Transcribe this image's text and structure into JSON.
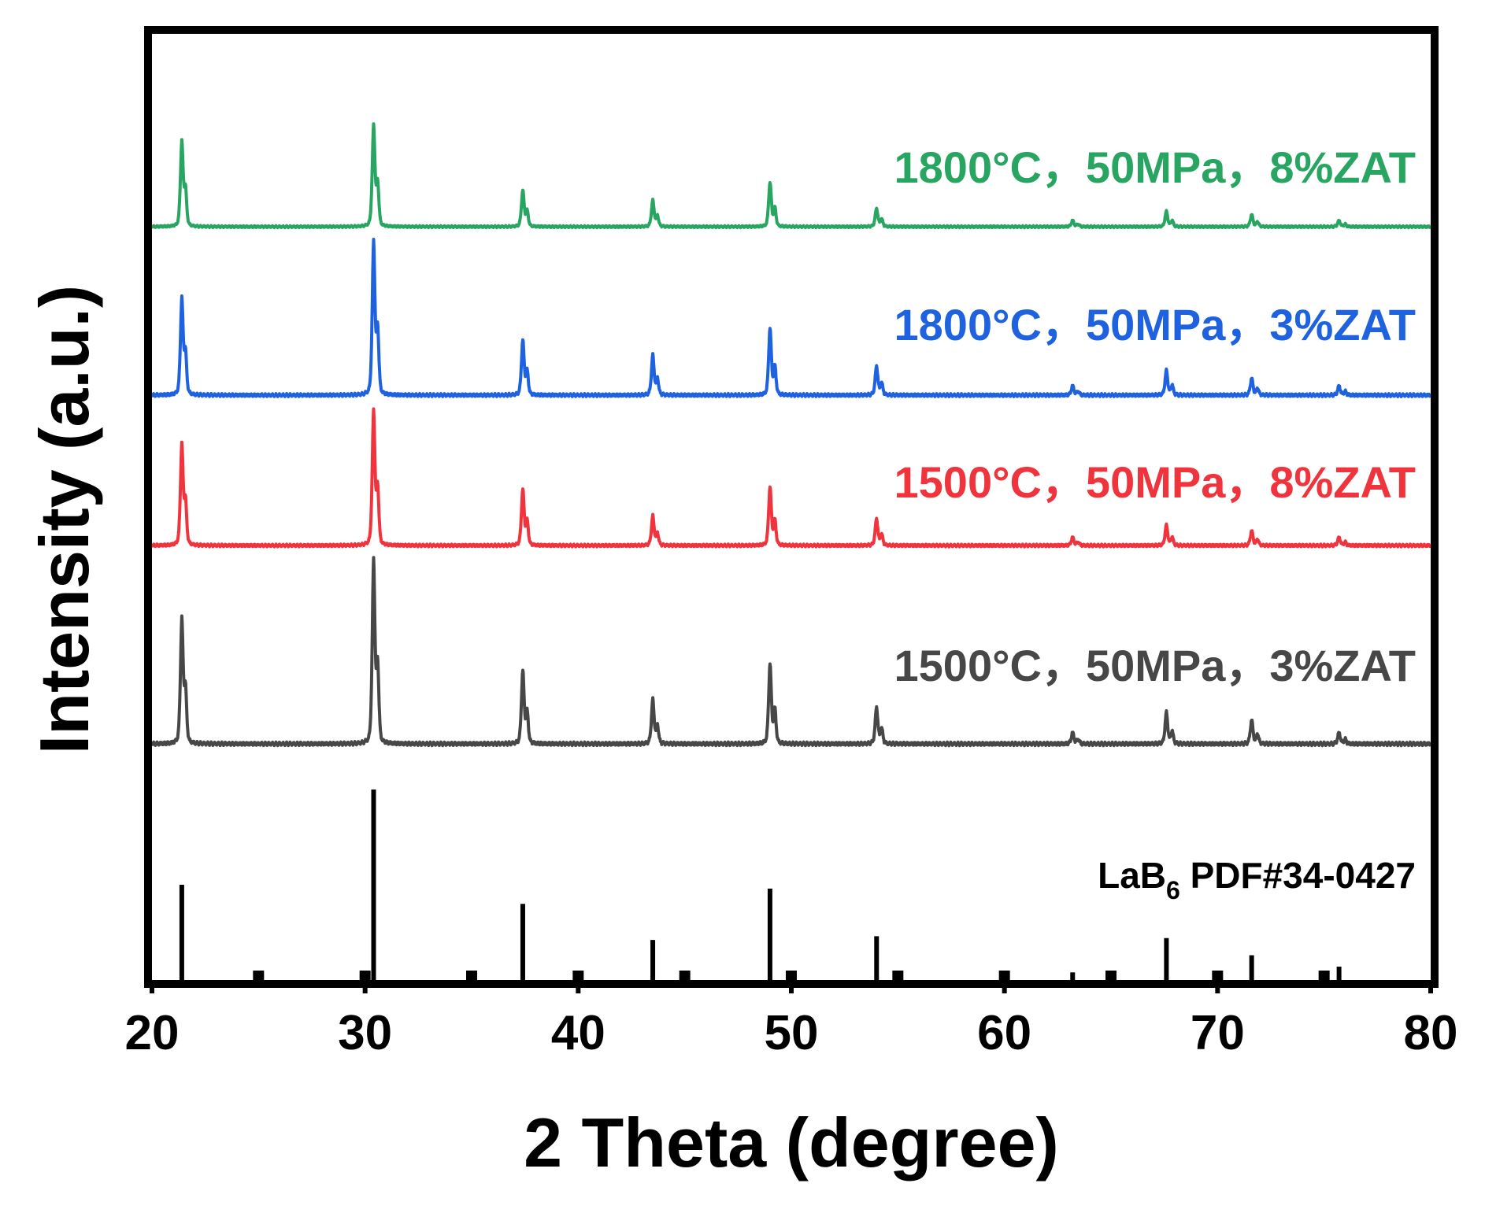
{
  "chart_data": {
    "type": "line",
    "title": "",
    "xlabel": "2 Theta (degree)",
    "ylabel": "Intensity (a.u.)",
    "xlim": [
      20,
      80
    ],
    "xticks": [
      20,
      30,
      40,
      50,
      60,
      70,
      80
    ],
    "xtick_labels": [
      "20",
      "30",
      "40",
      "50",
      "60",
      "70",
      "80"
    ],
    "yticks": "none",
    "grid": false,
    "stacked_offsets": true,
    "reference": {
      "label_main": "LaB",
      "label_sub": "6",
      "label_rest": " PDF#34-0427",
      "color": "#000000",
      "peaks": [
        {
          "x": 21.4,
          "rel": 50
        },
        {
          "x": 30.4,
          "rel": 100
        },
        {
          "x": 37.4,
          "rel": 40
        },
        {
          "x": 43.5,
          "rel": 21
        },
        {
          "x": 49.0,
          "rel": 48
        },
        {
          "x": 54.0,
          "rel": 23
        },
        {
          "x": 63.2,
          "rel": 4
        },
        {
          "x": 67.6,
          "rel": 22
        },
        {
          "x": 71.6,
          "rel": 13
        },
        {
          "x": 75.7,
          "rel": 7
        }
      ],
      "minor_marks": [
        25,
        30,
        35,
        40,
        45,
        50,
        55,
        60,
        65,
        70,
        75
      ]
    },
    "series": [
      {
        "name": "1500°C，50MPa，3%ZAT",
        "color": "#474747",
        "peaks": [
          {
            "x": 21.4,
            "rel": 68
          },
          {
            "x": 30.4,
            "rel": 100
          },
          {
            "x": 37.4,
            "rel": 40
          },
          {
            "x": 43.5,
            "rel": 24
          },
          {
            "x": 49.0,
            "rel": 44
          },
          {
            "x": 54.0,
            "rel": 20
          },
          {
            "x": 63.2,
            "rel": 6
          },
          {
            "x": 67.6,
            "rel": 17
          },
          {
            "x": 71.6,
            "rel": 13
          },
          {
            "x": 75.7,
            "rel": 6
          }
        ]
      },
      {
        "name": "1500°C，50MPa，8%ZAT",
        "color": "#f0343d",
        "peaks": [
          {
            "x": 21.4,
            "rel": 75
          },
          {
            "x": 30.4,
            "rel": 100
          },
          {
            "x": 37.4,
            "rel": 42
          },
          {
            "x": 43.5,
            "rel": 22
          },
          {
            "x": 49.0,
            "rel": 44
          },
          {
            "x": 54.0,
            "rel": 20
          },
          {
            "x": 63.2,
            "rel": 6
          },
          {
            "x": 67.6,
            "rel": 15
          },
          {
            "x": 71.6,
            "rel": 11
          },
          {
            "x": 75.7,
            "rel": 6
          }
        ]
      },
      {
        "name": "1800°C，50MPa，3%ZAT",
        "color": "#1f62e0",
        "peaks": [
          {
            "x": 21.4,
            "rel": 63
          },
          {
            "x": 30.4,
            "rel": 100
          },
          {
            "x": 37.4,
            "rel": 36
          },
          {
            "x": 43.5,
            "rel": 26
          },
          {
            "x": 49.0,
            "rel": 44
          },
          {
            "x": 54.0,
            "rel": 19
          },
          {
            "x": 63.2,
            "rel": 6
          },
          {
            "x": 67.6,
            "rel": 16
          },
          {
            "x": 71.6,
            "rel": 11
          },
          {
            "x": 75.7,
            "rel": 6
          }
        ]
      },
      {
        "name": "1800°C，50MPa，8%ZAT",
        "color": "#29a562",
        "peaks": [
          {
            "x": 21.4,
            "rel": 84
          },
          {
            "x": 30.4,
            "rel": 100
          },
          {
            "x": 37.4,
            "rel": 36
          },
          {
            "x": 43.5,
            "rel": 26
          },
          {
            "x": 49.0,
            "rel": 44
          },
          {
            "x": 54.0,
            "rel": 18
          },
          {
            "x": 63.2,
            "rel": 6
          },
          {
            "x": 67.6,
            "rel": 15
          },
          {
            "x": 71.6,
            "rel": 12
          },
          {
            "x": 75.7,
            "rel": 6
          }
        ]
      }
    ]
  }
}
